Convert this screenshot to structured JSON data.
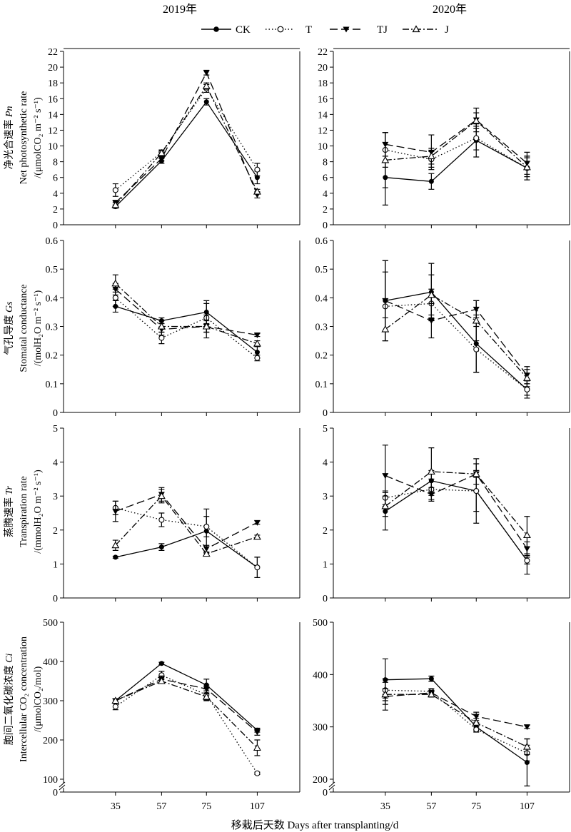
{
  "years": [
    "2019年",
    "2020年"
  ],
  "x_axis_label": "移栽后天数 Days after transplanting/d",
  "x_categories": [
    "35",
    "57",
    "75",
    "107"
  ],
  "legend": [
    {
      "name": "CK",
      "marker": "filled-circle",
      "dash": "solid"
    },
    {
      "name": "T",
      "marker": "open-circle",
      "dash": "dotted"
    },
    {
      "name": "TJ",
      "marker": "filled-triangle-down",
      "dash": "long-dash"
    },
    {
      "name": "J",
      "marker": "open-triangle-up",
      "dash": "dash-dot"
    }
  ],
  "y_labels": [
    {
      "cn": "净光合速率",
      "sym": "Pn",
      "en": "Net photosynthetic rate",
      "unit": "/(μmolCO₂ m⁻² s⁻¹)"
    },
    {
      "cn": "气孔导度",
      "sym": "Gs",
      "en": "Stomatal conductance",
      "unit": "/(molH₂O m⁻² s⁻¹)"
    },
    {
      "cn": "蒸腾速率",
      "sym": "Tr",
      "en": "Transpiration rate",
      "unit": "/(mmolH₂O m⁻² s⁻¹)"
    },
    {
      "cn": "胞间二氧化碳浓度",
      "sym": "Ci",
      "en": "Intercellular CO₂ concentration",
      "unit": "/(μmolCO₂/mol)"
    }
  ],
  "chart_data": [
    {
      "type": "line",
      "row": 0,
      "col": 0,
      "ylim": [
        0,
        22
      ],
      "yticks": [
        0,
        2,
        4,
        6,
        8,
        10,
        12,
        14,
        16,
        18,
        20,
        22
      ],
      "categories": [
        "35",
        "57",
        "75",
        "107"
      ],
      "series": [
        {
          "name": "CK",
          "values": [
            2.3,
            8.1,
            15.6,
            6.0
          ],
          "errors": [
            0.2,
            0.3,
            0.4,
            0.8
          ]
        },
        {
          "name": "T",
          "values": [
            4.4,
            9.2,
            17.3,
            7.0
          ],
          "errors": [
            0.8,
            0.3,
            0.5,
            0.8
          ]
        },
        {
          "name": "TJ",
          "values": [
            2.8,
            8.4,
            19.3,
            3.8
          ],
          "errors": [
            0.3,
            0.3,
            0.3,
            0.4
          ]
        },
        {
          "name": "J",
          "values": [
            2.5,
            9.1,
            17.6,
            4.2
          ],
          "errors": [
            0.3,
            0.3,
            0.4,
            0.3
          ]
        }
      ]
    },
    {
      "type": "line",
      "row": 0,
      "col": 1,
      "ylim": [
        0,
        22
      ],
      "yticks": [
        0,
        2,
        4,
        6,
        8,
        10,
        12,
        14,
        16,
        18,
        20,
        22
      ],
      "categories": [
        "35",
        "57",
        "75",
        "107"
      ],
      "series": [
        {
          "name": "CK",
          "values": [
            6.0,
            5.5,
            10.7,
            7.2
          ],
          "errors": [
            3.5,
            1.0,
            2.1,
            1.5
          ]
        },
        {
          "name": "T",
          "values": [
            9.5,
            8.3,
            11.0,
            7.2
          ],
          "errors": [
            2.2,
            1.0,
            1.5,
            1.5
          ]
        },
        {
          "name": "TJ",
          "values": [
            10.2,
            9.2,
            13.3,
            7.8
          ],
          "errors": [
            1.5,
            2.2,
            1.5,
            1.4
          ]
        },
        {
          "name": "J",
          "values": [
            8.2,
            8.7,
            13.2,
            7.3
          ],
          "errors": [
            3.5,
            1.0,
            1.0,
            1.2
          ]
        }
      ]
    },
    {
      "type": "line",
      "row": 1,
      "col": 0,
      "ylim": [
        0,
        0.6
      ],
      "yticks": [
        0,
        0.1,
        0.2,
        0.3,
        0.4,
        0.5,
        0.6
      ],
      "categories": [
        "35",
        "57",
        "75",
        "107"
      ],
      "series": [
        {
          "name": "CK",
          "values": [
            0.37,
            0.32,
            0.35,
            0.21
          ],
          "errors": [
            0.02,
            0.01,
            0.04,
            0.02
          ]
        },
        {
          "name": "T",
          "values": [
            0.4,
            0.26,
            0.33,
            0.19
          ],
          "errors": [
            0.03,
            0.02,
            0.05,
            0.01
          ]
        },
        {
          "name": "TJ",
          "values": [
            0.43,
            0.29,
            0.3,
            0.27
          ],
          "errors": [
            0.02,
            0.02,
            0.02,
            0.005
          ]
        },
        {
          "name": "J",
          "values": [
            0.45,
            0.3,
            0.3,
            0.24
          ],
          "errors": [
            0.03,
            0.02,
            0.04,
            0.01
          ]
        }
      ]
    },
    {
      "type": "line",
      "row": 1,
      "col": 1,
      "ylim": [
        0,
        0.6
      ],
      "yticks": [
        0,
        0.1,
        0.2,
        0.3,
        0.4,
        0.5,
        0.6
      ],
      "categories": [
        "35",
        "57",
        "75",
        "107"
      ],
      "series": [
        {
          "name": "CK",
          "values": [
            0.39,
            0.42,
            0.24,
            0.08
          ],
          "errors": [
            0.14,
            0.1,
            0.1,
            0.03
          ]
        },
        {
          "name": "T",
          "values": [
            0.37,
            0.38,
            0.22,
            0.08
          ],
          "errors": [
            0.12,
            0.05,
            0.08,
            0.02
          ]
        },
        {
          "name": "TJ",
          "values": [
            0.39,
            0.32,
            0.36,
            0.13
          ],
          "errors": [
            0.14,
            0.06,
            0.03,
            0.03
          ]
        },
        {
          "name": "J",
          "values": [
            0.29,
            0.41,
            0.32,
            0.12
          ],
          "errors": [
            0.04,
            0.07,
            0.07,
            0.03
          ]
        }
      ]
    },
    {
      "type": "line",
      "row": 2,
      "col": 0,
      "ylim": [
        0,
        5
      ],
      "yticks": [
        0,
        1,
        2,
        3,
        4,
        5
      ],
      "categories": [
        "35",
        "57",
        "75",
        "107"
      ],
      "series": [
        {
          "name": "CK",
          "values": [
            1.2,
            1.5,
            1.97,
            0.9
          ],
          "errors": [
            0.03,
            0.1,
            0.65,
            0.3
          ]
        },
        {
          "name": "T",
          "values": [
            2.65,
            2.3,
            2.1,
            0.9
          ],
          "errors": [
            0.2,
            0.2,
            0.3,
            0.3
          ]
        },
        {
          "name": "TJ",
          "values": [
            2.55,
            3.05,
            1.45,
            2.22
          ],
          "errors": [
            0.3,
            0.2,
            0.1,
            0.05
          ]
        },
        {
          "name": "J",
          "values": [
            1.55,
            3.0,
            1.3,
            1.8
          ],
          "errors": [
            0.15,
            0.2,
            0.05,
            0.05
          ]
        }
      ]
    },
    {
      "type": "line",
      "row": 2,
      "col": 1,
      "ylim": [
        0,
        5
      ],
      "yticks": [
        0,
        1,
        2,
        3,
        4,
        5
      ],
      "categories": [
        "35",
        "57",
        "75",
        "107"
      ],
      "series": [
        {
          "name": "CK",
          "values": [
            2.55,
            3.45,
            3.15,
            1.1
          ],
          "errors": [
            0.55,
            0.3,
            0.95,
            0.1
          ]
        },
        {
          "name": "T",
          "values": [
            2.95,
            3.2,
            3.15,
            1.1
          ],
          "errors": [
            0.2,
            0.3,
            0.6,
            0.4
          ]
        },
        {
          "name": "TJ",
          "values": [
            3.6,
            3.05,
            3.65,
            1.45
          ],
          "errors": [
            0.9,
            0.2,
            0.3,
            0.2
          ]
        },
        {
          "name": "J",
          "values": [
            2.7,
            3.72,
            3.65,
            1.85
          ],
          "errors": [
            0.3,
            0.7,
            0.1,
            0.55
          ]
        }
      ]
    },
    {
      "type": "line",
      "row": 3,
      "col": 0,
      "ylim": [
        0,
        500
      ],
      "yticks": [
        100,
        200,
        300,
        400,
        500
      ],
      "axis_break": true,
      "categories": [
        "35",
        "57",
        "75",
        "107"
      ],
      "series": [
        {
          "name": "CK",
          "values": [
            300,
            395,
            340,
            225
          ],
          "errors": [
            5,
            3,
            15,
            5
          ]
        },
        {
          "name": "T",
          "values": [
            285,
            365,
            315,
            115
          ],
          "errors": [
            8,
            10,
            15,
            3
          ]
        },
        {
          "name": "TJ",
          "values": [
            300,
            355,
            330,
            220
          ],
          "errors": [
            5,
            8,
            10,
            8
          ]
        },
        {
          "name": "J",
          "values": [
            300,
            350,
            310,
            180
          ],
          "errors": [
            5,
            5,
            8,
            20
          ]
        }
      ]
    },
    {
      "type": "line",
      "row": 3,
      "col": 1,
      "ylim": [
        0,
        500
      ],
      "yticks": [
        200,
        300,
        400,
        500
      ],
      "axis_break": true,
      "categories": [
        "35",
        "57",
        "75",
        "107"
      ],
      "series": [
        {
          "name": "CK",
          "values": [
            390,
            392,
            300,
            232
          ],
          "errors": [
            40,
            5,
            8,
            45
          ]
        },
        {
          "name": "T",
          "values": [
            370,
            368,
            295,
            250
          ],
          "errors": [
            15,
            5,
            5,
            15
          ]
        },
        {
          "name": "TJ",
          "values": [
            358,
            365,
            320,
            300
          ],
          "errors": [
            15,
            5,
            8,
            3
          ]
        },
        {
          "name": "J",
          "values": [
            362,
            362,
            308,
            262
          ],
          "errors": [
            30,
            5,
            8,
            15
          ]
        }
      ]
    }
  ]
}
